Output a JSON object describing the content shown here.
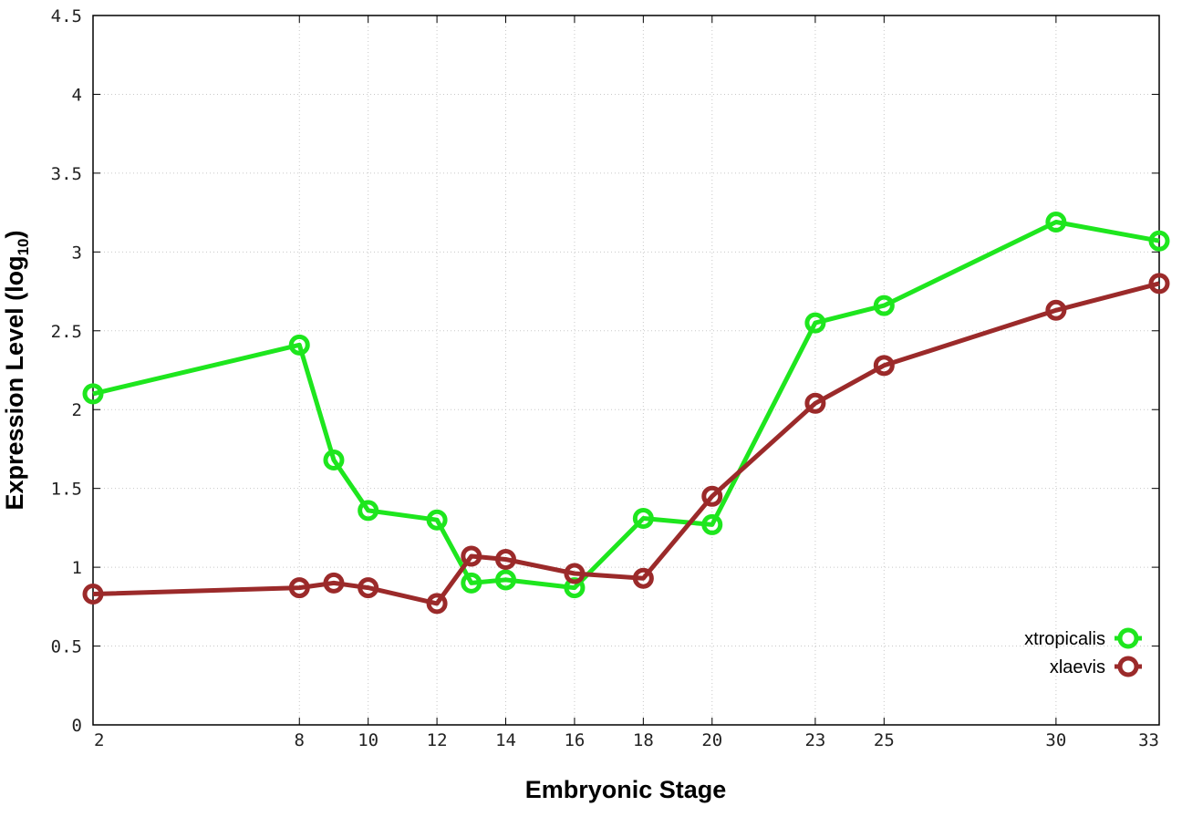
{
  "chart_data": {
    "type": "line",
    "xlabel": "Embryonic Stage",
    "ylabel": "Expression Level (log",
    "ylabel_subscript": "10",
    "ylabel_suffix": ")",
    "ylim": [
      0,
      4.5
    ],
    "xlim": [
      2,
      33
    ],
    "y_ticks": [
      "0",
      "0.5",
      "1",
      "1.5",
      "2",
      "2.5",
      "3",
      "3.5",
      "4",
      "4.5"
    ],
    "x_ticks": [
      2,
      8,
      10,
      12,
      14,
      16,
      18,
      20,
      23,
      25,
      30,
      33
    ],
    "grid": true,
    "legend_position": "bottom-right",
    "series": [
      {
        "name": "xtropicalis",
        "color": "#1ee61e",
        "x": [
          2,
          8,
          9,
          10,
          12,
          13,
          14,
          16,
          18,
          20,
          23,
          25,
          30,
          33
        ],
        "values": [
          2.1,
          2.41,
          1.68,
          1.36,
          1.3,
          0.9,
          0.92,
          0.87,
          1.31,
          1.27,
          2.55,
          2.66,
          3.19,
          3.07
        ]
      },
      {
        "name": "xlaevis",
        "color": "#9b2a2a",
        "x": [
          2,
          8,
          9,
          10,
          12,
          13,
          14,
          16,
          18,
          20,
          23,
          25,
          30,
          33
        ],
        "values": [
          0.83,
          0.87,
          0.9,
          0.87,
          0.77,
          1.07,
          1.05,
          0.96,
          0.93,
          1.45,
          2.04,
          2.28,
          2.63,
          2.8
        ]
      }
    ]
  }
}
